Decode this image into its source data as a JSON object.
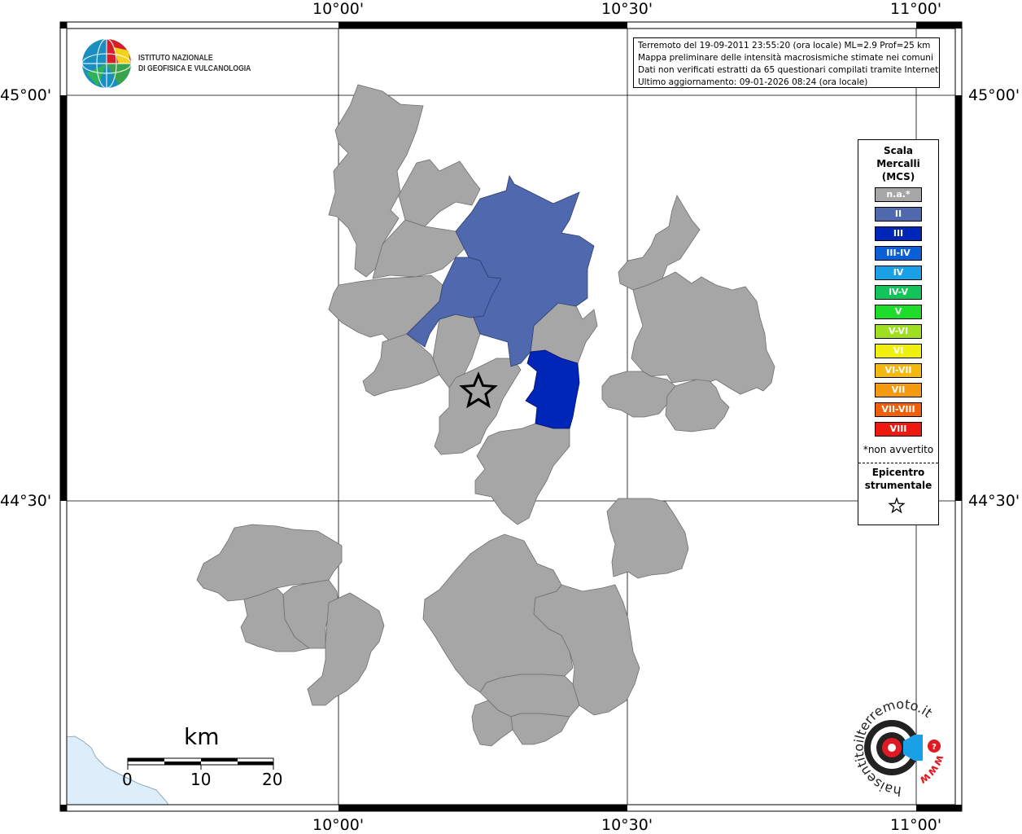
{
  "coordinates": {
    "lon_top_1": "10°00'",
    "lon_top_2": "10°30'",
    "lon_top_3": "11°00'",
    "lon_bottom_1": "10°00'",
    "lon_bottom_2": "10°30'",
    "lon_bottom_3": "11°00'",
    "lat_left_1": "45°00'",
    "lat_left_2": "44°30'",
    "lat_right_1": "45°00'",
    "lat_right_2": "44°30'"
  },
  "logo": {
    "line1": "ISTITUTO NAZIONALE",
    "line2": "DI GEOFISICA E VULCANOLOGIA"
  },
  "info": {
    "line1": "Terremoto del 19-09-2011 23:55:20 (ora locale) ML=2.9 Prof=25 km",
    "line2": "Mappa preliminare delle intensità macrosismiche stimate nei comuni",
    "line3": "Dati non verificati estratti da 65 questionari compilati tramite Internet.",
    "line4": "Ultimo aggiornamento: 09-01-2026 08:24 (ora locale)"
  },
  "legend": {
    "title1": "Scala",
    "title2": "Mercalli",
    "title3": "(MCS)",
    "items": [
      {
        "label": "n.a.*",
        "color": "#a6a6a6"
      },
      {
        "label": "II",
        "color": "#4f68ae"
      },
      {
        "label": "III",
        "color": "#0026b8"
      },
      {
        "label": "III-IV",
        "color": "#0a5fd6"
      },
      {
        "label": "IV",
        "color": "#1aa0e6"
      },
      {
        "label": "IV-V",
        "color": "#12c45a"
      },
      {
        "label": "V",
        "color": "#1edc2a"
      },
      {
        "label": "V-VI",
        "color": "#9ee020"
      },
      {
        "label": "VI",
        "color": "#f0f010"
      },
      {
        "label": "VI-VII",
        "color": "#f4b810"
      },
      {
        "label": "VII",
        "color": "#f49a10"
      },
      {
        "label": "VII-VIII",
        "color": "#f0600a"
      },
      {
        "label": "VIII",
        "color": "#ee1a10"
      }
    ],
    "note": "*non avvertito",
    "epicentre1": "Epicentro",
    "epicentre2": "strumentale"
  },
  "scale_bar": {
    "unit": "km",
    "ticks": [
      "0",
      "10",
      "20"
    ]
  },
  "watermark": {
    "text": "haisentitoilterremoto.it",
    "url_part": "www"
  },
  "colors": {
    "na": "#a6a6a6",
    "intensity_II": "#4f68ae",
    "intensity_III": "#0026b8",
    "sea": "#ddeefa"
  }
}
